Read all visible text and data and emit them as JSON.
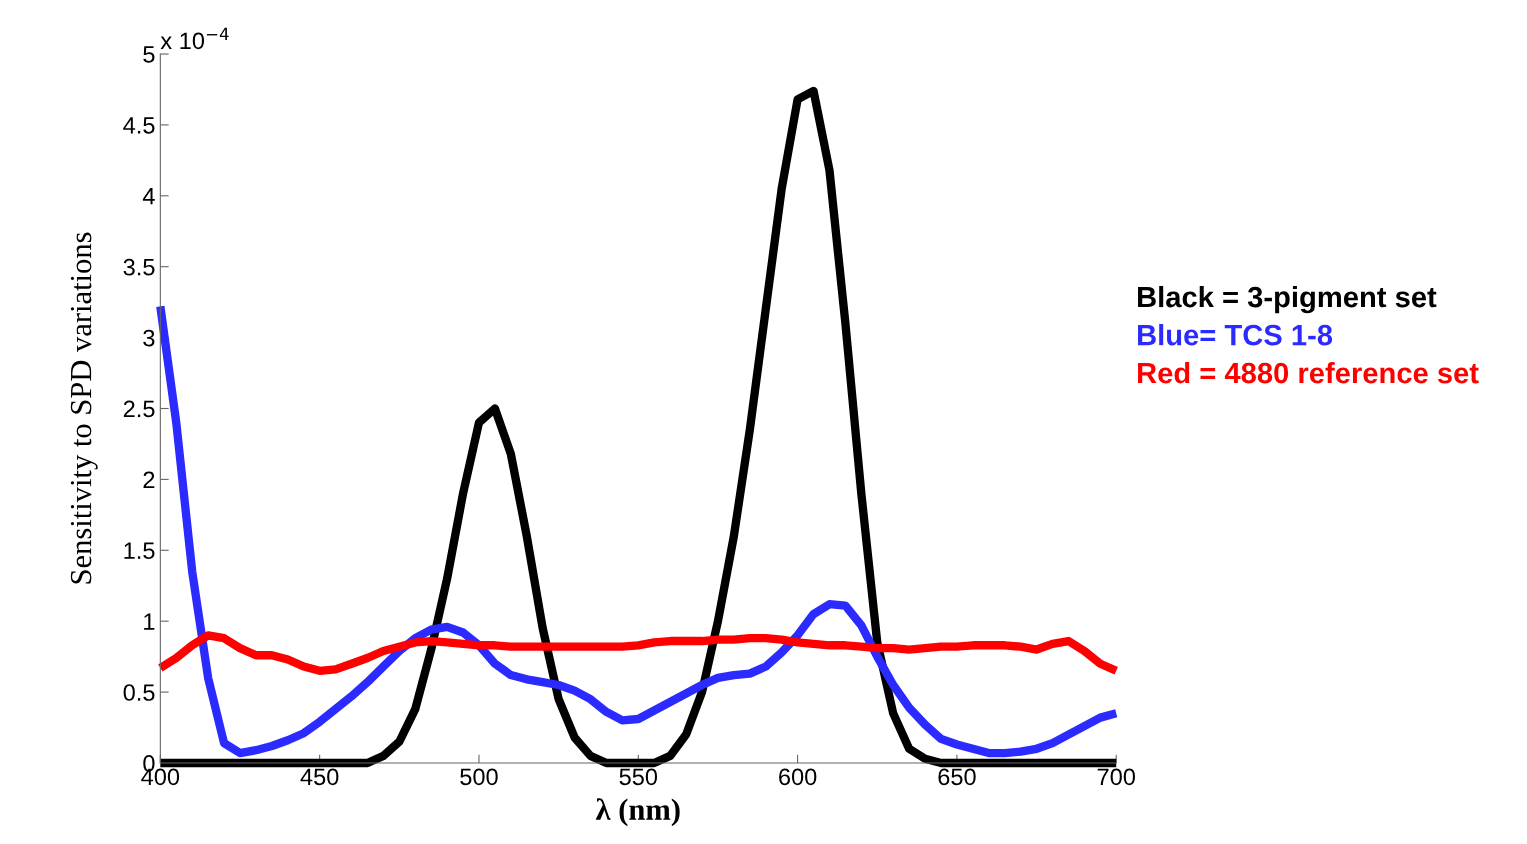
{
  "chart_data": {
    "type": "line",
    "xlabel": "λ (nm)",
    "ylabel": "Sensitivity to SPD variations",
    "annotations": [
      "x 10$^{−4}$"
    ],
    "x": [
      400,
      405,
      410,
      415,
      420,
      425,
      430,
      435,
      440,
      445,
      450,
      455,
      460,
      465,
      470,
      475,
      480,
      485,
      490,
      495,
      500,
      505,
      510,
      515,
      520,
      525,
      530,
      535,
      540,
      545,
      550,
      555,
      560,
      565,
      570,
      575,
      580,
      585,
      590,
      595,
      600,
      605,
      610,
      615,
      620,
      625,
      630,
      635,
      640,
      645,
      650,
      655,
      660,
      665,
      670,
      675,
      680,
      685,
      690,
      695,
      700
    ],
    "series": [
      {
        "name": "Black = 3-pigment set",
        "color": "#000000",
        "values": [
          0,
          0,
          0,
          0,
          0,
          0,
          0,
          0,
          0,
          0,
          0,
          0,
          0,
          0,
          0.05,
          0.15,
          0.38,
          0.8,
          1.3,
          1.9,
          2.4,
          2.5,
          2.18,
          1.6,
          0.95,
          0.45,
          0.18,
          0.05,
          0,
          0,
          0,
          0,
          0.05,
          0.2,
          0.5,
          1.0,
          1.6,
          2.35,
          3.2,
          4.05,
          4.68,
          4.74,
          4.18,
          3.1,
          1.9,
          0.85,
          0.35,
          0.1,
          0.03,
          0,
          0,
          0,
          0,
          0,
          0,
          0,
          0,
          0,
          0,
          0,
          0
        ]
      },
      {
        "name": "Blue= TCS 1-8",
        "color": "#2b2bff",
        "values": [
          3.22,
          2.4,
          1.35,
          0.6,
          0.14,
          0.07,
          0.09,
          0.12,
          0.16,
          0.21,
          0.29,
          0.38,
          0.47,
          0.57,
          0.68,
          0.79,
          0.88,
          0.94,
          0.96,
          0.92,
          0.83,
          0.7,
          0.62,
          0.59,
          0.57,
          0.55,
          0.51,
          0.45,
          0.36,
          0.3,
          0.31,
          0.37,
          0.43,
          0.49,
          0.55,
          0.6,
          0.62,
          0.63,
          0.68,
          0.78,
          0.9,
          1.05,
          1.12,
          1.11,
          0.97,
          0.75,
          0.55,
          0.39,
          0.27,
          0.17,
          0.13,
          0.1,
          0.07,
          0.07,
          0.08,
          0.1,
          0.14,
          0.2,
          0.26,
          0.32,
          0.35
        ]
      },
      {
        "name": "Red = 4880 reference set",
        "color": "#ff0000",
        "values": [
          0.67,
          0.74,
          0.83,
          0.9,
          0.88,
          0.81,
          0.76,
          0.76,
          0.73,
          0.68,
          0.65,
          0.66,
          0.7,
          0.74,
          0.79,
          0.82,
          0.85,
          0.86,
          0.85,
          0.84,
          0.83,
          0.83,
          0.82,
          0.82,
          0.82,
          0.82,
          0.82,
          0.82,
          0.82,
          0.82,
          0.83,
          0.85,
          0.86,
          0.86,
          0.86,
          0.87,
          0.87,
          0.88,
          0.88,
          0.87,
          0.85,
          0.84,
          0.83,
          0.83,
          0.82,
          0.81,
          0.81,
          0.8,
          0.81,
          0.82,
          0.82,
          0.83,
          0.83,
          0.83,
          0.82,
          0.8,
          0.84,
          0.86,
          0.79,
          0.7,
          0.65
        ]
      }
    ],
    "xlim": [
      400,
      700
    ],
    "xticks": [
      400,
      450,
      500,
      550,
      600,
      650,
      700
    ],
    "ylim": [
      0,
      5
    ],
    "yticks": [
      0,
      0.5,
      1,
      1.5,
      2,
      2.5,
      3,
      3.5,
      4,
      4.5,
      5
    ],
    "grid": false,
    "legend": "right",
    "marker": "none",
    "line_style": "solid"
  }
}
